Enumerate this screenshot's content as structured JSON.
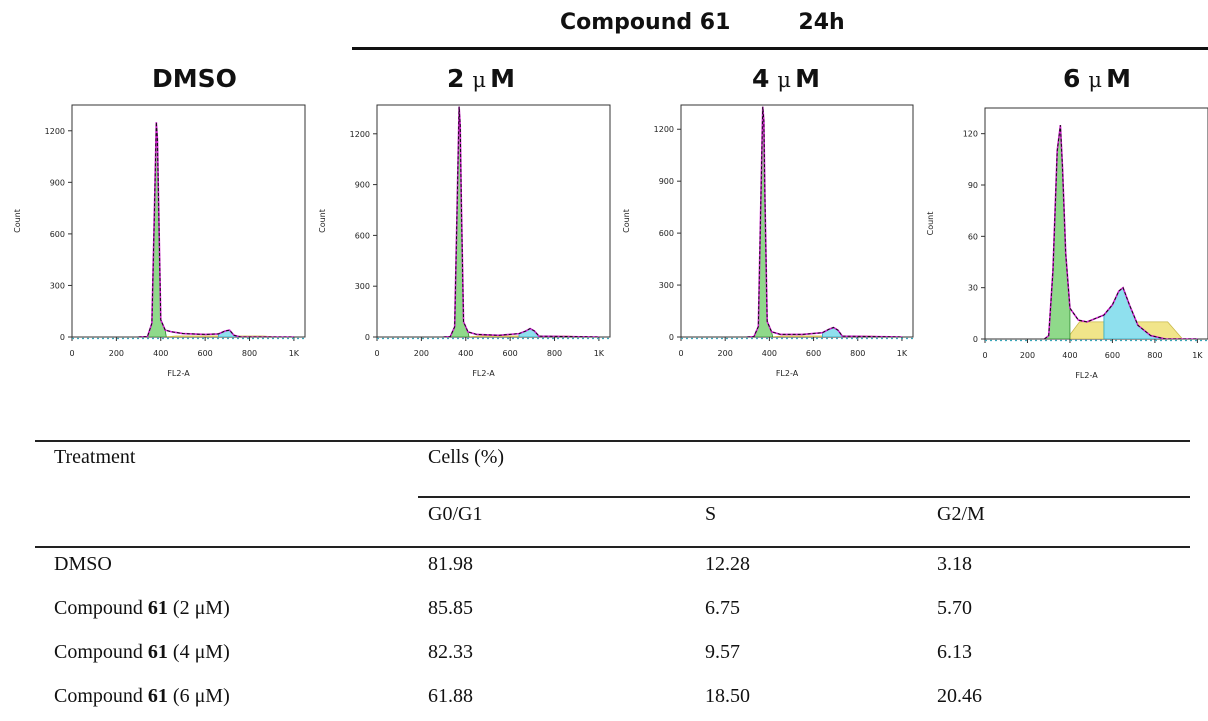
{
  "figure": {
    "header": {
      "compound": "Compound 61",
      "time": "24h"
    },
    "panels": [
      {
        "title_main": "DMSO",
        "title_unit": "",
        "y_ticks": [
          "0",
          "300",
          "600",
          "900",
          "1200"
        ],
        "y_max": 1350
      },
      {
        "title_main": "2",
        "title_unit": "M",
        "y_ticks": [
          "0",
          "300",
          "600",
          "900",
          "1200"
        ],
        "y_max": 1370
      },
      {
        "title_main": "4",
        "title_unit": "M",
        "y_ticks": [
          "0",
          "300",
          "600",
          "900",
          "1200"
        ],
        "y_max": 1340
      },
      {
        "title_main": "6",
        "title_unit": "M",
        "y_ticks": [
          "0",
          "30",
          "60",
          "90",
          "120"
        ],
        "y_max": 135
      }
    ],
    "x_ticks": [
      "0",
      "200",
      "400",
      "600",
      "800",
      "1K"
    ],
    "y_label": "Count",
    "x_label": "FL2-A"
  },
  "chart_data": [
    {
      "type": "area",
      "title": "DMSO",
      "xlabel": "FL2-A",
      "ylabel": "Count",
      "xlim": [
        0,
        1050
      ],
      "ylim": [
        0,
        1350
      ],
      "x": [
        300,
        340,
        360,
        370,
        380,
        385,
        390,
        400,
        420,
        450,
        500,
        600,
        660,
        690,
        710,
        730,
        760,
        1000
      ],
      "y": [
        0,
        2,
        80,
        650,
        1250,
        1150,
        800,
        100,
        40,
        30,
        20,
        15,
        18,
        35,
        40,
        10,
        0,
        0
      ]
    },
    {
      "type": "area",
      "title": "2 μM",
      "xlabel": "FL2-A",
      "ylabel": "Count",
      "xlim": [
        0,
        1050
      ],
      "ylim": [
        0,
        1370
      ],
      "x": [
        300,
        330,
        350,
        360,
        370,
        375,
        380,
        390,
        410,
        450,
        550,
        640,
        670,
        690,
        710,
        730,
        1000
      ],
      "y": [
        0,
        2,
        60,
        700,
        1360,
        1250,
        800,
        90,
        30,
        15,
        10,
        20,
        35,
        50,
        35,
        5,
        0
      ]
    },
    {
      "type": "area",
      "title": "4 μM",
      "xlabel": "FL2-A",
      "ylabel": "Count",
      "xlim": [
        0,
        1050
      ],
      "ylim": [
        0,
        1340
      ],
      "x": [
        300,
        330,
        350,
        360,
        370,
        375,
        380,
        390,
        410,
        450,
        550,
        640,
        670,
        690,
        710,
        730,
        1000
      ],
      "y": [
        0,
        2,
        60,
        700,
        1330,
        1250,
        800,
        90,
        30,
        15,
        15,
        25,
        45,
        55,
        40,
        5,
        0
      ]
    },
    {
      "type": "area",
      "title": "6 μM",
      "xlabel": "FL2-A",
      "ylabel": "Count",
      "xlim": [
        0,
        1050
      ],
      "ylim": [
        0,
        135
      ],
      "x": [
        280,
        300,
        320,
        340,
        355,
        365,
        380,
        400,
        440,
        480,
        520,
        560,
        600,
        630,
        650,
        680,
        720,
        780,
        850,
        1000
      ],
      "y": [
        0,
        2,
        40,
        110,
        125,
        100,
        50,
        18,
        11,
        10,
        12,
        14,
        20,
        28,
        30,
        20,
        8,
        2,
        0,
        0
      ]
    }
  ],
  "table": {
    "headers": {
      "treatment": "Treatment",
      "cells": "Cells (%)",
      "g0g1": "G0/G1",
      "s": "S",
      "g2m": "G2/M"
    },
    "rows": [
      {
        "pre": "DMSO",
        "num": "",
        "post": "",
        "g0g1": "81.98",
        "s": "12.28",
        "g2m": "3.18"
      },
      {
        "pre": "Compound ",
        "num": "61",
        "post": " (2 μM)",
        "g0g1": "85.85",
        "s": "6.75",
        "g2m": "5.70"
      },
      {
        "pre": "Compound ",
        "num": "61",
        "post": " (4 μM)",
        "g0g1": "82.33",
        "s": "9.57",
        "g2m": "6.13"
      },
      {
        "pre": "Compound ",
        "num": "61",
        "post": " (6 μM)",
        "g0g1": "61.88",
        "s": "18.50",
        "g2m": "20.46"
      }
    ]
  }
}
